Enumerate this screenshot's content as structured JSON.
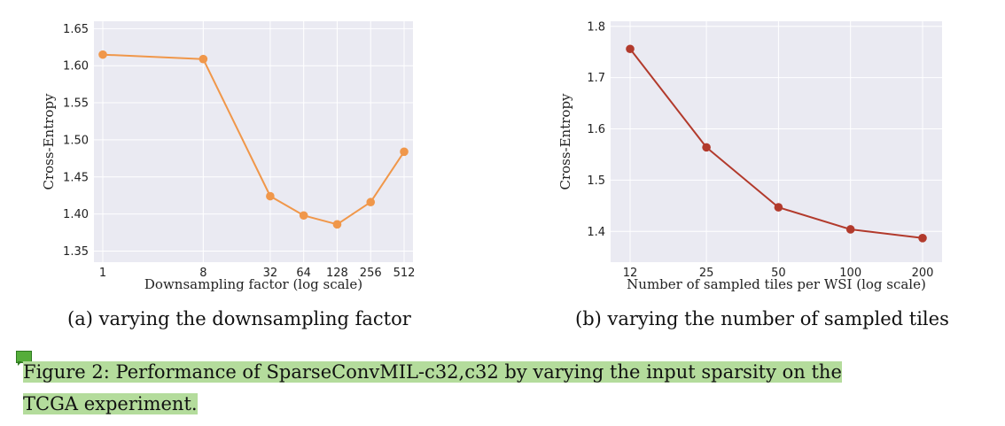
{
  "chart_data": [
    {
      "type": "line",
      "xlabel": "Downsampling factor (log scale)",
      "ylabel": "Cross-Entropy",
      "x_scale": "log",
      "x": [
        1,
        8,
        32,
        64,
        128,
        256,
        512
      ],
      "x_tick_labels": [
        "1",
        "8",
        "32",
        "64",
        "128",
        "256",
        "512"
      ],
      "y_ticks": [
        "1.35",
        "1.40",
        "1.45",
        "1.50",
        "1.55",
        "1.60",
        "1.65"
      ],
      "ylim": [
        1.335,
        1.66
      ],
      "grid": true,
      "series": [
        {
          "values": [
            1.615,
            1.609,
            1.424,
            1.398,
            1.386,
            1.416,
            1.484
          ],
          "color": "#f0974a"
        }
      ]
    },
    {
      "type": "line",
      "xlabel": "Number of sampled tiles per WSI (log scale)",
      "ylabel": "Cross-Entropy",
      "x_scale": "log",
      "x": [
        12,
        25,
        50,
        100,
        200
      ],
      "x_tick_labels": [
        "12",
        "25",
        "50",
        "100",
        "200"
      ],
      "y_ticks": [
        "1.4",
        "1.5",
        "1.6",
        "1.7",
        "1.8"
      ],
      "ylim": [
        1.34,
        1.81
      ],
      "grid": true,
      "series": [
        {
          "values": [
            1.756,
            1.564,
            1.447,
            1.404,
            1.387
          ],
          "color": "#b23a2c"
        }
      ]
    }
  ],
  "captions": {
    "a": "(a) varying the downsampling factor",
    "b": "(b) varying the number of sampled tiles"
  },
  "figure_caption": {
    "line1": "Figure 2:  Performance of SparseConvMIL-c32,c32 by varying the input sparsity on the",
    "line2": "TCGA experiment."
  },
  "colors": {
    "plot_background": "#eaeaf2",
    "grid": "#ffffff",
    "highlight": "#b4dc9c"
  }
}
